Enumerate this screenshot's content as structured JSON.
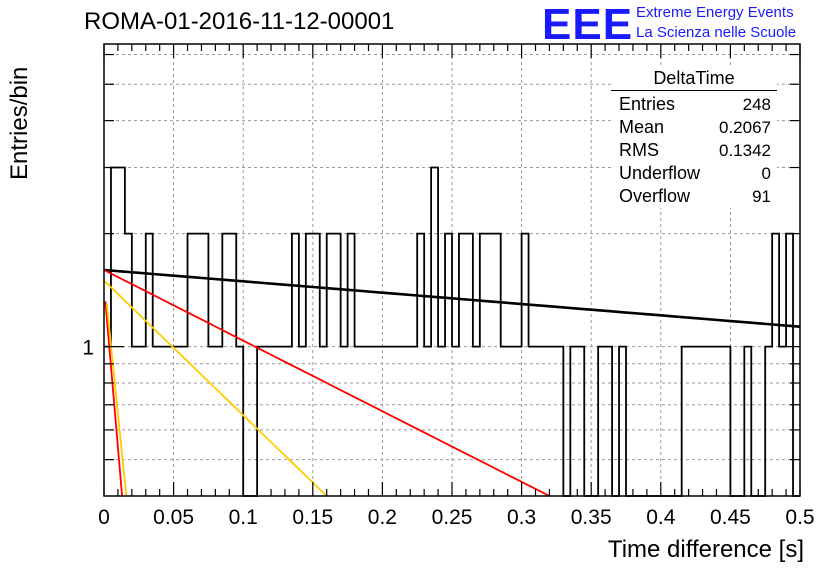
{
  "header": {
    "title": "ROMA-01-2016-11-12-00001",
    "logo_text": "EEE",
    "logo_line1": "Extreme Energy Events",
    "logo_line2": "La Scienza nelle Scuole"
  },
  "stats_box": {
    "title": "DeltaTime",
    "rows": [
      {
        "label": "Entries",
        "value": "248"
      },
      {
        "label": "Mean",
        "value": "0.2067"
      },
      {
        "label": "RMS",
        "value": "0.1342"
      },
      {
        "label": "Underflow",
        "value": "0"
      },
      {
        "label": "Overflow",
        "value": "91"
      }
    ]
  },
  "chart_data": {
    "type": "line",
    "title": "ROMA-01-2016-11-12-00001",
    "xlabel": "Time difference [s]",
    "ylabel": "Entries/bin",
    "xlim": [
      0,
      0.5
    ],
    "ylim": [
      0.4,
      6.4
    ],
    "log_y": true,
    "grid": true,
    "x_ticks": [
      "0",
      "0.05",
      "0.1",
      "0.15",
      "0.2",
      "0.25",
      "0.3",
      "0.35",
      "0.4",
      "0.45",
      "0.5"
    ],
    "x_tick_values": [
      0,
      0.05,
      0.1,
      0.15,
      0.2,
      0.25,
      0.3,
      0.35,
      0.4,
      0.45,
      0.5
    ],
    "y_ticks": [
      "1"
    ],
    "y_tick_values": [
      1
    ],
    "histogram": {
      "name": "DeltaTime",
      "color": "#000000",
      "bin_width": 0.005,
      "counts": [
        1,
        3,
        3,
        2,
        1,
        1,
        2,
        1,
        1,
        1,
        1,
        1,
        2,
        2,
        2,
        1,
        1,
        2,
        2,
        1,
        0,
        0,
        1,
        1,
        1,
        1,
        1,
        2,
        1,
        2,
        2,
        1,
        2,
        2,
        1,
        2,
        1,
        1,
        1,
        1,
        1,
        1,
        1,
        1,
        1,
        2,
        1,
        3,
        1,
        2,
        1,
        2,
        2,
        1,
        2,
        2,
        2,
        1,
        1,
        1,
        2,
        1,
        1,
        1,
        1,
        1,
        0,
        1,
        1,
        0,
        0,
        1,
        1,
        0,
        1,
        0,
        0,
        0,
        0,
        0,
        0,
        0,
        0,
        1,
        1,
        1,
        1,
        1,
        1,
        1,
        0,
        0,
        1,
        0,
        0,
        1,
        2,
        1,
        2,
        0
      ]
    },
    "fit_lines": [
      {
        "color": "#000000",
        "x": [
          0,
          0.5
        ],
        "y": [
          1.6,
          1.13
        ]
      },
      {
        "color": "#ff0000",
        "x": [
          0,
          0.32
        ],
        "y": [
          1.6,
          0.4
        ]
      },
      {
        "color": "#ffcc00",
        "x": [
          0,
          0.16
        ],
        "y": [
          1.5,
          0.4
        ]
      },
      {
        "color": "#ff0000",
        "x": [
          0.001,
          0.013
        ],
        "y": [
          1.32,
          0.4
        ]
      },
      {
        "color": "#ffcc00",
        "x": [
          0.002,
          0.016
        ],
        "y": [
          1.3,
          0.4
        ]
      }
    ]
  }
}
